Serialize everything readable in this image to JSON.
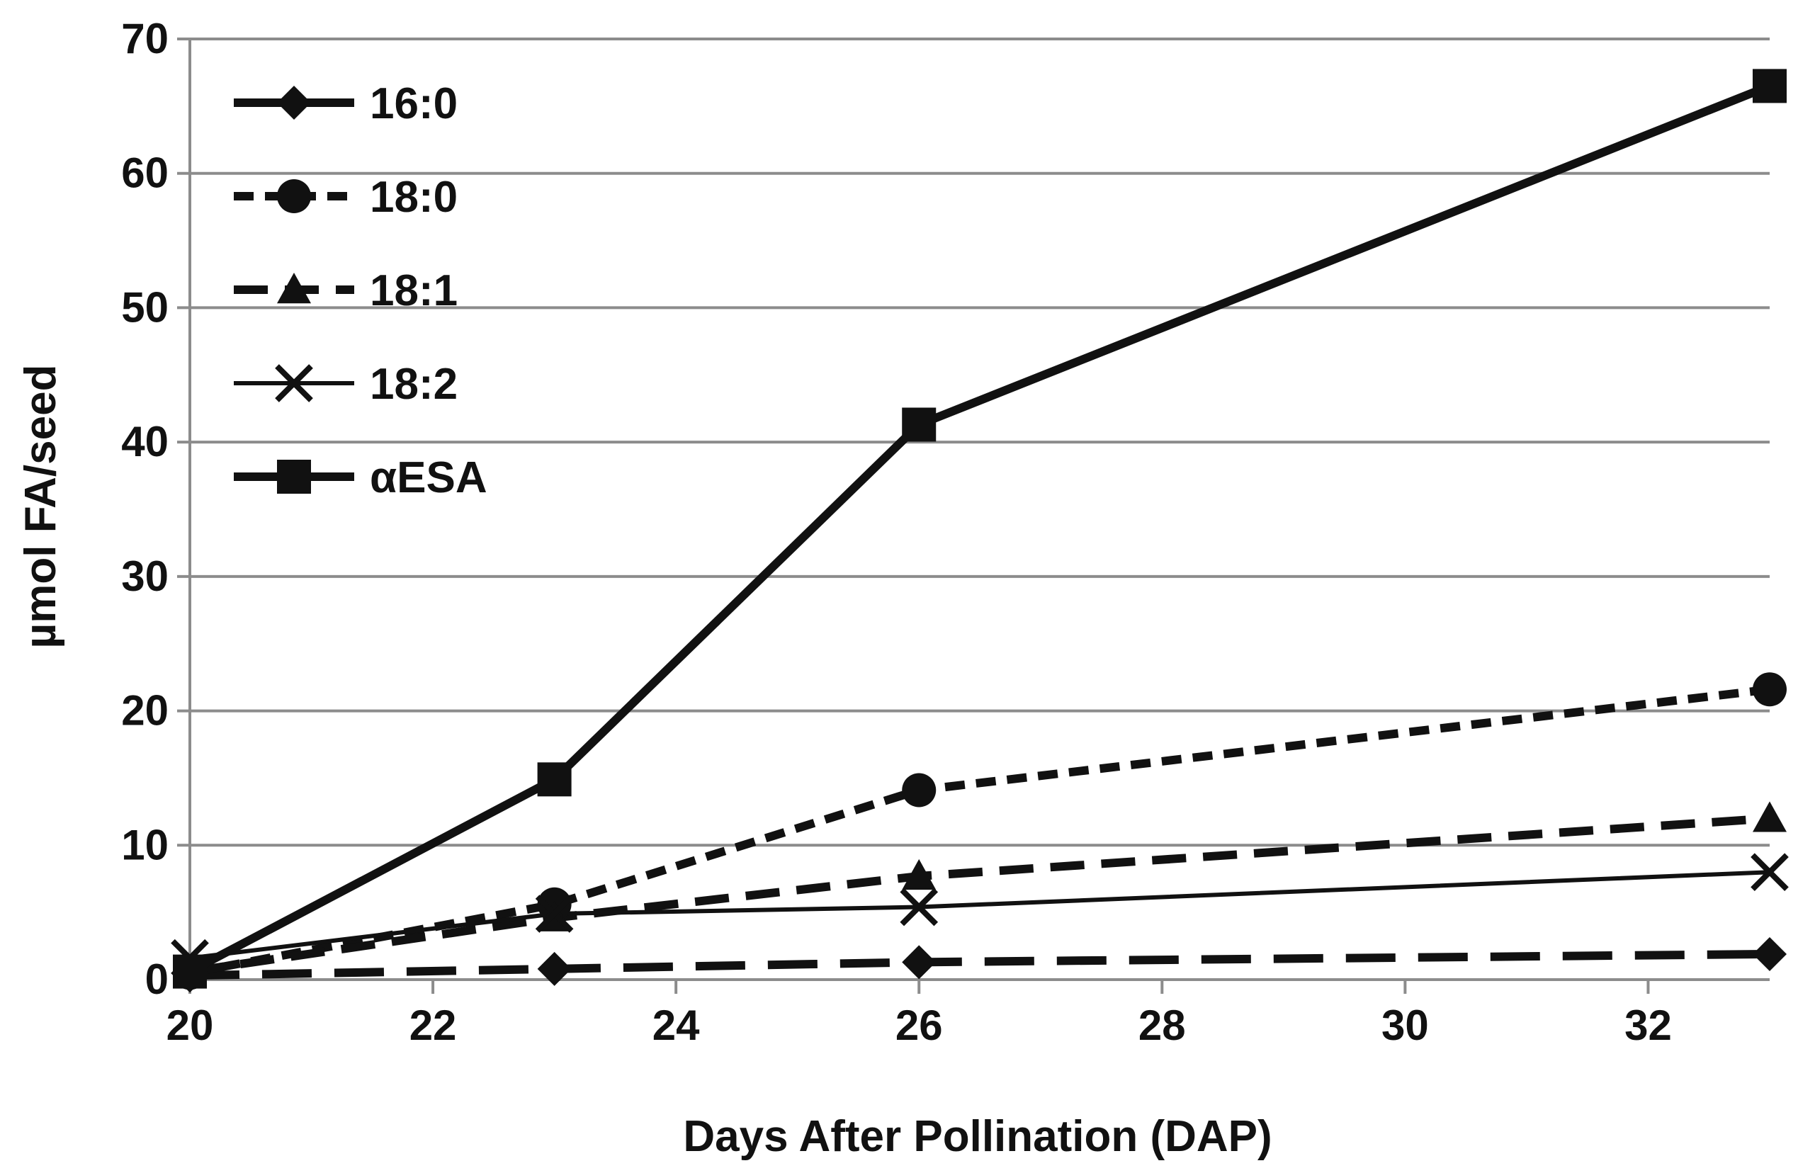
{
  "chart_data": {
    "type": "line",
    "title": "",
    "xlabel": "Days After Pollination (DAP)",
    "ylabel": "µmol FA/seed",
    "xlim": [
      20,
      33
    ],
    "ylim": [
      0,
      70
    ],
    "xticks": [
      20,
      22,
      24,
      26,
      28,
      30,
      32
    ],
    "yticks": [
      0,
      10,
      20,
      30,
      40,
      50,
      60,
      70
    ],
    "grid": "horizontal",
    "legend_position": "top-left",
    "x": [
      20,
      23,
      26,
      33
    ],
    "series": [
      {
        "name": "16:0",
        "marker": "diamond",
        "dash": "long-dash",
        "values": [
          0.3,
          0.8,
          1.3,
          1.9
        ]
      },
      {
        "name": "18:0",
        "marker": "circle",
        "dash": "short-dash",
        "values": [
          0.5,
          5.6,
          14.1,
          21.6
        ]
      },
      {
        "name": "18:1",
        "marker": "triangle",
        "dash": "medium-dash",
        "values": [
          0.6,
          4.6,
          7.7,
          12.0
        ]
      },
      {
        "name": "18:2",
        "marker": "x",
        "dash": "solid-thin",
        "values": [
          1.6,
          4.9,
          5.4,
          8.0
        ]
      },
      {
        "name": "αESA",
        "marker": "square",
        "dash": "solid",
        "values": [
          0.6,
          14.9,
          41.3,
          66.5
        ]
      }
    ]
  }
}
